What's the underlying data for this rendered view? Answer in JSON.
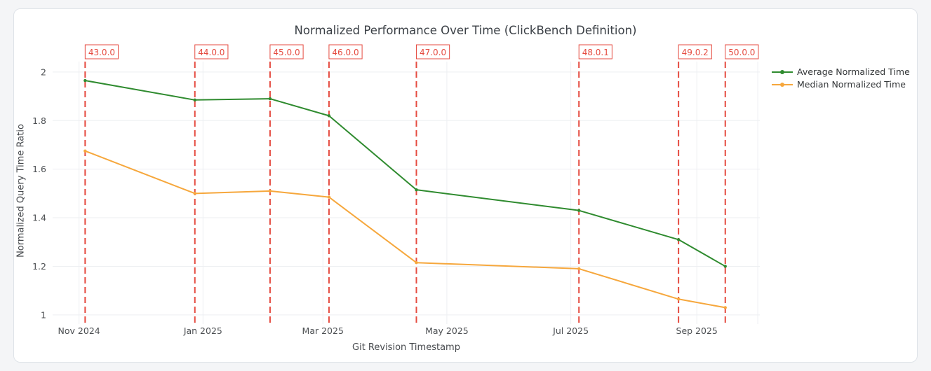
{
  "chart_data": {
    "type": "line",
    "title": "Normalized Performance Over Time (ClickBench Definition)",
    "xlabel": "Git Revision Timestamp",
    "ylabel": "Normalized Query Time Ratio",
    "x_dates": [
      "2024-11-04",
      "2024-12-28",
      "2025-02-03",
      "2025-03-04",
      "2025-04-16",
      "2025-07-05",
      "2025-08-23",
      "2025-09-15"
    ],
    "series": [
      {
        "name": "Average Normalized Time",
        "color": "#2f8b2f",
        "values": [
          1.965,
          1.885,
          1.89,
          1.82,
          1.515,
          1.43,
          1.31,
          1.2
        ]
      },
      {
        "name": "Median Normalized Time",
        "color": "#f6a73c",
        "values": [
          1.675,
          1.5,
          1.51,
          1.485,
          1.215,
          1.19,
          1.065,
          1.03
        ]
      }
    ],
    "releases": [
      {
        "version": "43.0.0",
        "date": "2024-11-04"
      },
      {
        "version": "44.0.0",
        "date": "2024-12-28"
      },
      {
        "version": "45.0.0",
        "date": "2025-02-03"
      },
      {
        "version": "46.0.0",
        "date": "2025-03-04"
      },
      {
        "version": "47.0.0",
        "date": "2025-04-16"
      },
      {
        "version": "48.0.1",
        "date": "2025-07-05"
      },
      {
        "version": "49.0.2",
        "date": "2025-08-23"
      },
      {
        "version": "50.0.0",
        "date": "2025-09-15"
      }
    ],
    "release_line_color": "#e54b40",
    "x_ticks": [
      {
        "label": "Nov 2024",
        "date": "2024-11-01"
      },
      {
        "label": "Jan 2025",
        "date": "2025-01-01"
      },
      {
        "label": "Mar 2025",
        "date": "2025-03-01"
      },
      {
        "label": "May 2025",
        "date": "2025-05-01"
      },
      {
        "label": "Jul 2025",
        "date": "2025-07-01"
      },
      {
        "label": "Sep 2025",
        "date": "2025-09-01"
      }
    ],
    "x_extra_gridline_dates": [
      "2025-10-01"
    ],
    "x_domain": [
      "2024-10-19",
      "2025-10-02"
    ],
    "y_ticks": [
      "1",
      "1.2",
      "1.4",
      "1.6",
      "1.8",
      "2"
    ],
    "ylim": [
      0.962,
      2.043
    ],
    "grid": true,
    "legend_position": "top-right-outside"
  }
}
